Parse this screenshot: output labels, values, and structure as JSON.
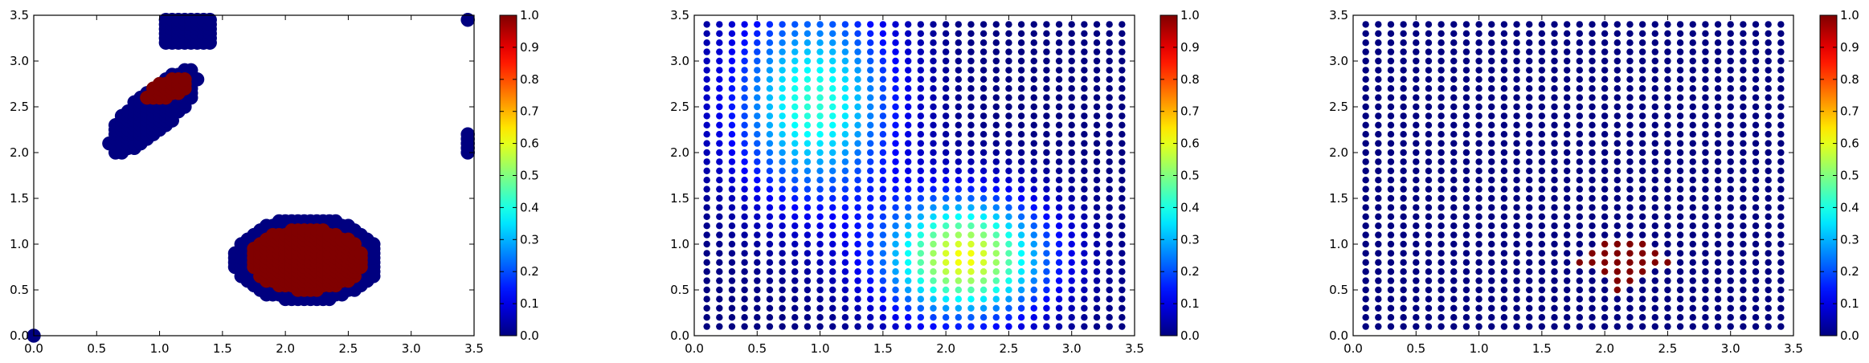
{
  "chart_data": [
    {
      "type": "scatter",
      "title": "",
      "xlabel": "",
      "ylabel": "",
      "xlim": [
        0.0,
        3.5
      ],
      "ylim": [
        0.0,
        3.5
      ],
      "x_ticks": [
        "0.0",
        "0.5",
        "1.0",
        "1.5",
        "2.0",
        "2.5",
        "3.0",
        "3.5"
      ],
      "y_ticks": [
        "0.0",
        "0.5",
        "1.0",
        "1.5",
        "2.0",
        "2.5",
        "3.0",
        "3.5"
      ],
      "colorbar": {
        "range": [
          0.0,
          1.0
        ],
        "colormap": "jet",
        "ticks": [
          "0.0",
          "0.1",
          "0.2",
          "0.3",
          "0.4",
          "0.5",
          "0.6",
          "0.7",
          "0.8",
          "0.9",
          "1.0"
        ]
      },
      "marker_size": "large",
      "grid": false,
      "description_of_points": {
        "blob_1_value_0": {
          "center": [
            0.95,
            2.45
          ],
          "major_axis": 1.1,
          "minor_axis": 0.38,
          "angle_deg": 55
        },
        "blob_1_value_1": {
          "center": [
            1.07,
            2.7
          ],
          "major_axis": 0.42,
          "minor_axis": 0.18,
          "angle_deg": 35
        },
        "blob_2_value_0": {
          "center": [
            2.17,
            0.83
          ],
          "rx": 0.58,
          "ry": 0.46
        },
        "blob_2_value_1": {
          "center": [
            2.17,
            0.83
          ],
          "rx": 0.45,
          "ry": 0.34
        },
        "top_band_value_0": {
          "x_range": [
            1.05,
            1.45
          ],
          "y_range": [
            3.2,
            3.45
          ]
        },
        "edge_points_value_0": [
          [
            3.45,
            3.45
          ],
          [
            3.45,
            2.2
          ],
          [
            3.45,
            2.15
          ],
          [
            3.45,
            2.1
          ],
          [
            3.45,
            2.05
          ],
          [
            3.45,
            2.0
          ],
          [
            0.0,
            0.0
          ]
        ]
      }
    },
    {
      "type": "scatter",
      "title": "",
      "xlabel": "",
      "ylabel": "",
      "xlim": [
        0.0,
        3.5
      ],
      "ylim": [
        0.0,
        3.5
      ],
      "x_ticks": [
        "0.0",
        "0.5",
        "1.0",
        "1.5",
        "2.0",
        "2.5",
        "3.0",
        "3.5"
      ],
      "y_ticks": [
        "0.0",
        "0.5",
        "1.0",
        "1.5",
        "2.0",
        "2.5",
        "3.0",
        "3.5"
      ],
      "colorbar": {
        "range": [
          0.0,
          1.0
        ],
        "colormap": "jet",
        "ticks": [
          "0.0",
          "0.1",
          "0.2",
          "0.3",
          "0.4",
          "0.5",
          "0.6",
          "0.7",
          "0.8",
          "0.9",
          "1.0"
        ]
      },
      "grid_points": {
        "x_start": 0.1,
        "x_end": 3.4,
        "y_start": 0.1,
        "y_end": 3.4,
        "step": 0.1
      },
      "field": {
        "components": [
          {
            "center": [
              0.95,
              2.55
            ],
            "sigma_x": 0.45,
            "sigma_y": 0.75,
            "peak": 0.42
          },
          {
            "center": [
              2.15,
              0.85
            ],
            "sigma_x": 0.45,
            "sigma_y": 0.45,
            "peak": 0.62
          }
        ]
      }
    },
    {
      "type": "scatter",
      "title": "",
      "xlabel": "",
      "ylabel": "",
      "xlim": [
        0.0,
        3.5
      ],
      "ylim": [
        0.0,
        3.5
      ],
      "x_ticks": [
        "0.0",
        "0.5",
        "1.0",
        "1.5",
        "2.0",
        "2.5",
        "3.0",
        "3.5"
      ],
      "y_ticks": [
        "0.0",
        "0.5",
        "1.0",
        "1.5",
        "2.0",
        "2.5",
        "3.0",
        "3.5"
      ],
      "colorbar": {
        "range": [
          0.0,
          1.0
        ],
        "colormap": "jet",
        "ticks": [
          "0.0",
          "0.1",
          "0.2",
          "0.3",
          "0.4",
          "0.5",
          "0.6",
          "0.7",
          "0.8",
          "0.9",
          "1.0"
        ]
      },
      "grid_points": {
        "x_start": 0.1,
        "x_end": 3.4,
        "y_start": 0.1,
        "y_end": 3.4,
        "step": 0.1
      },
      "high_points_value_1": [
        [
          1.8,
          0.8
        ],
        [
          1.9,
          0.8
        ],
        [
          1.9,
          0.9
        ],
        [
          2.0,
          0.7
        ],
        [
          2.0,
          0.8
        ],
        [
          2.0,
          0.9
        ],
        [
          2.0,
          1.0
        ],
        [
          2.1,
          0.5
        ],
        [
          2.1,
          0.6
        ],
        [
          2.1,
          0.7
        ],
        [
          2.1,
          0.8
        ],
        [
          2.1,
          0.9
        ],
        [
          2.1,
          1.0
        ],
        [
          2.2,
          0.6
        ],
        [
          2.2,
          0.7
        ],
        [
          2.2,
          0.8
        ],
        [
          2.2,
          0.9
        ],
        [
          2.2,
          1.0
        ],
        [
          2.3,
          0.7
        ],
        [
          2.3,
          0.8
        ],
        [
          2.3,
          0.9
        ],
        [
          2.3,
          1.0
        ],
        [
          2.4,
          0.8
        ],
        [
          2.4,
          0.9
        ],
        [
          2.5,
          0.8
        ]
      ]
    }
  ]
}
